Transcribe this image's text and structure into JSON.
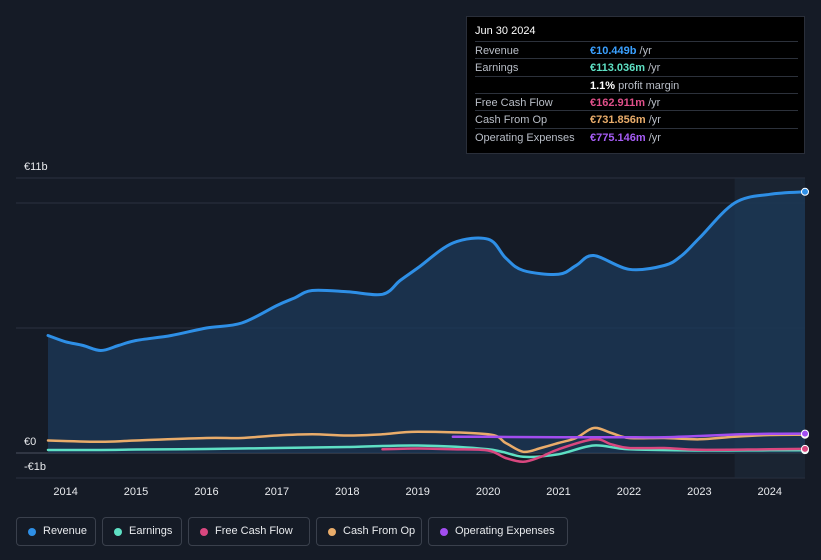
{
  "chart_data": {
    "type": "line",
    "ylabels": {
      "top": "€11b",
      "zero": "€0",
      "bottom": "-€1b"
    },
    "ylim": [
      -1,
      11
    ],
    "x_ticks": [
      "2014",
      "2015",
      "2016",
      "2017",
      "2018",
      "2019",
      "2020",
      "2021",
      "2022",
      "2023",
      "2024"
    ],
    "x_tick_values": [
      2014,
      2015,
      2016,
      2017,
      2018,
      2019,
      2020,
      2021,
      2022,
      2023,
      2024
    ],
    "xlim": [
      2013.75,
      2024.5
    ],
    "forecast_start": 2023.5,
    "series": [
      {
        "key": "revenue",
        "name": "Revenue",
        "color": "#2e8fe6",
        "fill": true,
        "points": [
          [
            2013.75,
            4.7
          ],
          [
            2014.0,
            4.45
          ],
          [
            2014.25,
            4.3
          ],
          [
            2014.5,
            4.1
          ],
          [
            2014.75,
            4.3
          ],
          [
            2015.0,
            4.5
          ],
          [
            2015.5,
            4.7
          ],
          [
            2016.0,
            5.0
          ],
          [
            2016.5,
            5.2
          ],
          [
            2017.0,
            5.9
          ],
          [
            2017.25,
            6.2
          ],
          [
            2017.5,
            6.5
          ],
          [
            2018.0,
            6.45
          ],
          [
            2018.5,
            6.35
          ],
          [
            2018.75,
            6.9
          ],
          [
            2019.0,
            7.4
          ],
          [
            2019.5,
            8.4
          ],
          [
            2020.0,
            8.55
          ],
          [
            2020.25,
            7.8
          ],
          [
            2020.5,
            7.3
          ],
          [
            2021.0,
            7.15
          ],
          [
            2021.25,
            7.5
          ],
          [
            2021.5,
            7.9
          ],
          [
            2022.0,
            7.35
          ],
          [
            2022.5,
            7.5
          ],
          [
            2022.75,
            7.9
          ],
          [
            2023.0,
            8.6
          ],
          [
            2023.5,
            10.0
          ],
          [
            2024.0,
            10.35
          ],
          [
            2024.5,
            10.449
          ]
        ]
      },
      {
        "key": "earnings",
        "name": "Earnings",
        "color": "#5ee0c4",
        "fill": false,
        "points": [
          [
            2013.75,
            0.12
          ],
          [
            2014.5,
            0.12
          ],
          [
            2015.0,
            0.14
          ],
          [
            2016.0,
            0.16
          ],
          [
            2017.0,
            0.2
          ],
          [
            2018.0,
            0.24
          ],
          [
            2019.0,
            0.3
          ],
          [
            2020.0,
            0.15
          ],
          [
            2020.5,
            -0.15
          ],
          [
            2021.0,
            -0.05
          ],
          [
            2021.5,
            0.3
          ],
          [
            2022.0,
            0.15
          ],
          [
            2023.0,
            0.1
          ],
          [
            2024.0,
            0.11
          ],
          [
            2024.5,
            0.113
          ]
        ]
      },
      {
        "key": "fcf",
        "name": "Free Cash Flow",
        "color": "#d9477f",
        "fill": false,
        "points": [
          [
            2018.5,
            0.15
          ],
          [
            2019.0,
            0.18
          ],
          [
            2019.5,
            0.15
          ],
          [
            2020.0,
            0.1
          ],
          [
            2020.25,
            -0.2
          ],
          [
            2020.5,
            -0.35
          ],
          [
            2020.75,
            -0.15
          ],
          [
            2021.0,
            0.15
          ],
          [
            2021.5,
            0.55
          ],
          [
            2021.75,
            0.35
          ],
          [
            2022.0,
            0.2
          ],
          [
            2022.5,
            0.2
          ],
          [
            2023.0,
            0.13
          ],
          [
            2024.0,
            0.15
          ],
          [
            2024.5,
            0.163
          ]
        ]
      },
      {
        "key": "cfo",
        "name": "Cash From Op",
        "color": "#e9ac6a",
        "fill": false,
        "points": [
          [
            2013.75,
            0.5
          ],
          [
            2014.5,
            0.45
          ],
          [
            2015.0,
            0.5
          ],
          [
            2016.0,
            0.6
          ],
          [
            2016.5,
            0.6
          ],
          [
            2017.0,
            0.7
          ],
          [
            2017.5,
            0.75
          ],
          [
            2018.0,
            0.7
          ],
          [
            2018.5,
            0.75
          ],
          [
            2019.0,
            0.85
          ],
          [
            2020.0,
            0.75
          ],
          [
            2020.25,
            0.4
          ],
          [
            2020.5,
            0.05
          ],
          [
            2020.75,
            0.2
          ],
          [
            2021.0,
            0.4
          ],
          [
            2021.25,
            0.6
          ],
          [
            2021.5,
            1.0
          ],
          [
            2021.75,
            0.8
          ],
          [
            2022.0,
            0.6
          ],
          [
            2022.5,
            0.6
          ],
          [
            2023.0,
            0.55
          ],
          [
            2023.5,
            0.65
          ],
          [
            2024.0,
            0.72
          ],
          [
            2024.5,
            0.732
          ]
        ]
      },
      {
        "key": "opex",
        "name": "Operating Expenses",
        "color": "#a24df0",
        "fill": false,
        "points": [
          [
            2019.5,
            0.65
          ],
          [
            2020.0,
            0.65
          ],
          [
            2021.0,
            0.63
          ],
          [
            2022.0,
            0.63
          ],
          [
            2022.5,
            0.63
          ],
          [
            2023.0,
            0.68
          ],
          [
            2023.5,
            0.74
          ],
          [
            2024.0,
            0.77
          ],
          [
            2024.5,
            0.775
          ]
        ]
      }
    ]
  },
  "tooltip": {
    "date": "Jun 30 2024",
    "rows": [
      {
        "label": "Revenue",
        "value": "€10.449b",
        "unit": " /yr",
        "color": "#3aa0ff"
      },
      {
        "label": "Earnings",
        "value": "€113.036m",
        "unit": " /yr",
        "color": "#5ee0c4"
      },
      {
        "label": "",
        "value": "1.1%",
        "unit": " profit margin",
        "color": "#ffffff"
      },
      {
        "label": "Free Cash Flow",
        "value": "€162.911m",
        "unit": " /yr",
        "color": "#e0508a"
      },
      {
        "label": "Cash From Op",
        "value": "€731.856m",
        "unit": " /yr",
        "color": "#e9ac6a"
      },
      {
        "label": "Operating Expenses",
        "value": "€775.146m",
        "unit": " /yr",
        "color": "#a65cf5"
      }
    ]
  },
  "legend": [
    {
      "key": "revenue",
      "label": "Revenue",
      "color": "#2e8fe6"
    },
    {
      "key": "earnings",
      "label": "Earnings",
      "color": "#5ee0c4"
    },
    {
      "key": "fcf",
      "label": "Free Cash Flow",
      "color": "#d9477f"
    },
    {
      "key": "cfo",
      "label": "Cash From Op",
      "color": "#e9ac6a"
    },
    {
      "key": "opex",
      "label": "Operating Expenses",
      "color": "#a24df0"
    }
  ]
}
